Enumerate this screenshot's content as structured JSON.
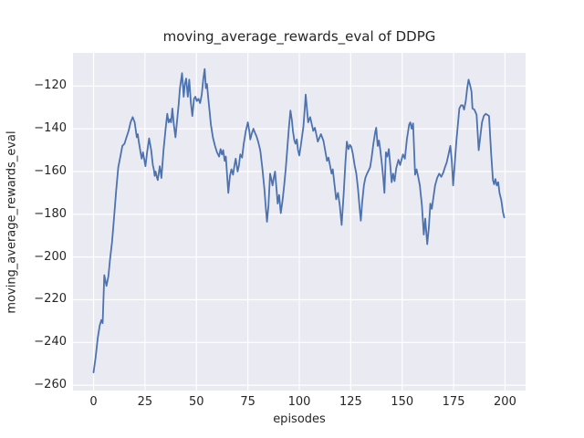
{
  "figure": {
    "title": "moving_average_rewards_eval of DDPG",
    "xlabel": "episodes",
    "ylabel": "moving_average_rewards_eval"
  },
  "chart_data": {
    "type": "line",
    "title": "moving_average_rewards_eval of DDPG",
    "xlabel": "episodes",
    "ylabel": "moving_average_rewards_eval",
    "x_ticks": [
      0,
      25,
      50,
      75,
      100,
      125,
      150,
      175,
      200
    ],
    "y_ticks": [
      -120,
      -140,
      -160,
      -180,
      -200,
      -220,
      -240,
      -260
    ],
    "xlim": [
      -10,
      210
    ],
    "ylim": [
      -262.5,
      -104.5
    ],
    "grid": true,
    "legend": "none",
    "background_color": "#EAEAF2",
    "grid_color": "#FFFFFF",
    "line_color": "#4C72B0",
    "text_color": "#262626",
    "series": [
      {
        "name": "moving_average_rewards_eval",
        "points": [
          [
            0,
            -254
          ],
          [
            1,
            -247
          ],
          [
            2,
            -238
          ],
          [
            3,
            -232
          ],
          [
            3.8,
            -229.5
          ],
          [
            4.4,
            -231
          ],
          [
            5.2,
            -208.5
          ],
          [
            6.3,
            -213.5
          ],
          [
            7.2,
            -209
          ],
          [
            8,
            -201
          ],
          [
            9,
            -193
          ],
          [
            10,
            -181
          ],
          [
            11,
            -169
          ],
          [
            12,
            -158
          ],
          [
            13,
            -153
          ],
          [
            14,
            -148
          ],
          [
            15,
            -147
          ],
          [
            16,
            -144
          ],
          [
            17,
            -141
          ],
          [
            18,
            -137
          ],
          [
            19,
            -134.5
          ],
          [
            20,
            -137
          ],
          [
            21,
            -144
          ],
          [
            21.5,
            -142.5
          ],
          [
            22,
            -146
          ],
          [
            23,
            -152
          ],
          [
            23.4,
            -154
          ],
          [
            24,
            -151
          ],
          [
            25.2,
            -157.5
          ],
          [
            26,
            -151
          ],
          [
            27,
            -144.5
          ],
          [
            28,
            -150
          ],
          [
            28.8,
            -157
          ],
          [
            29.3,
            -159
          ],
          [
            29.7,
            -162
          ],
          [
            30.2,
            -160
          ],
          [
            30.7,
            -162.5
          ],
          [
            31.2,
            -164
          ],
          [
            32.2,
            -157.5
          ],
          [
            32.6,
            -160
          ],
          [
            33,
            -163
          ],
          [
            34,
            -150
          ],
          [
            35,
            -140
          ],
          [
            35.8,
            -133
          ],
          [
            36.5,
            -137
          ],
          [
            37.2,
            -135.5
          ],
          [
            37.7,
            -137
          ],
          [
            38.3,
            -130.5
          ],
          [
            39,
            -138
          ],
          [
            39.8,
            -144
          ],
          [
            40.6,
            -136
          ],
          [
            41.3,
            -129
          ],
          [
            42,
            -121
          ],
          [
            43,
            -114
          ],
          [
            43.8,
            -125
          ],
          [
            44.4,
            -119
          ],
          [
            45,
            -116.5
          ],
          [
            45.8,
            -125
          ],
          [
            46.5,
            -117
          ],
          [
            47.3,
            -128
          ],
          [
            48,
            -134
          ],
          [
            48.8,
            -126
          ],
          [
            49.5,
            -125
          ],
          [
            50.2,
            -127
          ],
          [
            51,
            -126
          ],
          [
            51.8,
            -128
          ],
          [
            52.6,
            -124
          ],
          [
            53.3,
            -117
          ],
          [
            54,
            -112
          ],
          [
            54.6,
            -121
          ],
          [
            55.1,
            -119
          ],
          [
            55.7,
            -125
          ],
          [
            56.3,
            -131
          ],
          [
            57,
            -138
          ],
          [
            58,
            -144
          ],
          [
            59,
            -148
          ],
          [
            60,
            -151
          ],
          [
            61,
            -153
          ],
          [
            61.7,
            -149.5
          ],
          [
            62.4,
            -152
          ],
          [
            63,
            -150
          ],
          [
            63.7,
            -155
          ],
          [
            64.3,
            -153
          ],
          [
            65,
            -163
          ],
          [
            65.5,
            -170
          ],
          [
            66.3,
            -162
          ],
          [
            67,
            -159
          ],
          [
            67.8,
            -161.5
          ],
          [
            68.5,
            -157
          ],
          [
            69.1,
            -154
          ],
          [
            70,
            -160
          ],
          [
            70.7,
            -157
          ],
          [
            71.3,
            -152
          ],
          [
            72.2,
            -153.5
          ],
          [
            73,
            -147
          ],
          [
            74,
            -141
          ],
          [
            75,
            -137
          ],
          [
            75.7,
            -141
          ],
          [
            76.2,
            -145
          ],
          [
            77,
            -142
          ],
          [
            77.7,
            -140
          ],
          [
            78.5,
            -142
          ],
          [
            79.2,
            -143.5
          ],
          [
            80,
            -146
          ],
          [
            81,
            -150
          ],
          [
            82,
            -158
          ],
          [
            83,
            -168
          ],
          [
            83.7,
            -177
          ],
          [
            84.3,
            -183.5
          ],
          [
            85,
            -176
          ],
          [
            85.8,
            -161
          ],
          [
            86.4,
            -163.5
          ],
          [
            87,
            -166.5
          ],
          [
            87.6,
            -163
          ],
          [
            88.2,
            -160
          ],
          [
            89,
            -169
          ],
          [
            89.5,
            -175
          ],
          [
            90.2,
            -171
          ],
          [
            91,
            -179.5
          ],
          [
            91.8,
            -174
          ],
          [
            92.6,
            -167
          ],
          [
            93.4,
            -159
          ],
          [
            94.2,
            -149
          ],
          [
            95,
            -139
          ],
          [
            95.7,
            -131.5
          ],
          [
            96.4,
            -136
          ],
          [
            96.9,
            -141
          ],
          [
            97.6,
            -145.5
          ],
          [
            98.2,
            -147
          ],
          [
            98.8,
            -145
          ],
          [
            99.4,
            -150
          ],
          [
            100,
            -152.5
          ],
          [
            100.7,
            -148
          ],
          [
            101.4,
            -143
          ],
          [
            102,
            -139
          ],
          [
            102.6,
            -131
          ],
          [
            103.1,
            -124
          ],
          [
            104.3,
            -137
          ],
          [
            105.3,
            -134.5
          ],
          [
            106.8,
            -141
          ],
          [
            107.6,
            -139.5
          ],
          [
            109,
            -146
          ],
          [
            110.5,
            -142.5
          ],
          [
            111.7,
            -145.5
          ],
          [
            113.5,
            -155
          ],
          [
            114.2,
            -153.5
          ],
          [
            115.7,
            -161
          ],
          [
            116.3,
            -159
          ],
          [
            117.9,
            -173
          ],
          [
            118.8,
            -170
          ],
          [
            119.7,
            -176
          ],
          [
            120.6,
            -185
          ],
          [
            121.6,
            -170
          ],
          [
            122.4,
            -156
          ],
          [
            123.1,
            -146
          ],
          [
            123.9,
            -149.5
          ],
          [
            124.6,
            -147.5
          ],
          [
            125.3,
            -148.5
          ],
          [
            126.1,
            -152
          ],
          [
            126.9,
            -157
          ],
          [
            127.7,
            -161
          ],
          [
            128.5,
            -168
          ],
          [
            129.3,
            -177
          ],
          [
            129.9,
            -183
          ],
          [
            130.6,
            -174
          ],
          [
            131.4,
            -166.5
          ],
          [
            132.1,
            -163
          ],
          [
            132.9,
            -161
          ],
          [
            133.7,
            -159.5
          ],
          [
            134.4,
            -158
          ],
          [
            135.1,
            -154
          ],
          [
            136,
            -147
          ],
          [
            136.9,
            -141.5
          ],
          [
            137.4,
            -139.5
          ],
          [
            138.1,
            -148
          ],
          [
            138.7,
            -145.5
          ],
          [
            139.4,
            -150
          ],
          [
            140.1,
            -156
          ],
          [
            140.8,
            -163
          ],
          [
            141.4,
            -170
          ],
          [
            142.1,
            -151
          ],
          [
            142.8,
            -153
          ],
          [
            143.5,
            -149.5
          ],
          [
            144.2,
            -157
          ],
          [
            144.9,
            -165
          ],
          [
            145.6,
            -161
          ],
          [
            146.3,
            -164.5
          ],
          [
            147.1,
            -158.5
          ],
          [
            148.2,
            -154.5
          ],
          [
            149,
            -157
          ],
          [
            150.4,
            -152
          ],
          [
            151.3,
            -154
          ],
          [
            152.3,
            -145
          ],
          [
            153.4,
            -138
          ],
          [
            154,
            -137
          ],
          [
            154.6,
            -140
          ],
          [
            155.3,
            -137.5
          ],
          [
            156.3,
            -161.5
          ],
          [
            157,
            -159
          ],
          [
            157.8,
            -162.5
          ],
          [
            158.6,
            -166.5
          ],
          [
            159.6,
            -176
          ],
          [
            160.5,
            -189.5
          ],
          [
            161.2,
            -182
          ],
          [
            162.2,
            -194
          ],
          [
            163,
            -186
          ],
          [
            163.7,
            -175
          ],
          [
            164.4,
            -177.5
          ],
          [
            165.2,
            -172
          ],
          [
            166,
            -166.5
          ],
          [
            167,
            -163
          ],
          [
            168,
            -161
          ],
          [
            169,
            -162.5
          ],
          [
            170,
            -160.5
          ],
          [
            170.8,
            -158
          ],
          [
            171.6,
            -156
          ],
          [
            172.5,
            -152
          ],
          [
            173.4,
            -148
          ],
          [
            174.1,
            -155
          ],
          [
            174.8,
            -166.5
          ],
          [
            175.6,
            -156
          ],
          [
            176.3,
            -146.5
          ],
          [
            177.1,
            -138
          ],
          [
            177.8,
            -130.5
          ],
          [
            178.6,
            -129
          ],
          [
            179.4,
            -129
          ],
          [
            180.1,
            -131
          ],
          [
            180.9,
            -127
          ],
          [
            181.6,
            -121
          ],
          [
            182.3,
            -117
          ],
          [
            183,
            -119.5
          ],
          [
            183.7,
            -122.5
          ],
          [
            184.2,
            -130.5
          ],
          [
            185.1,
            -131
          ],
          [
            186.2,
            -133.5
          ],
          [
            187.2,
            -150
          ],
          [
            188,
            -143.5
          ],
          [
            188.8,
            -137
          ],
          [
            189.7,
            -134
          ],
          [
            190.6,
            -133
          ],
          [
            191.4,
            -133.5
          ],
          [
            192.2,
            -134
          ],
          [
            193.3,
            -152
          ],
          [
            194.1,
            -164
          ],
          [
            194.7,
            -166
          ],
          [
            195.3,
            -163.5
          ],
          [
            196,
            -166.5
          ],
          [
            196.7,
            -165
          ],
          [
            197.3,
            -170
          ],
          [
            198.2,
            -173.5
          ],
          [
            199,
            -179
          ],
          [
            199.6,
            -181.5
          ]
        ]
      }
    ]
  }
}
